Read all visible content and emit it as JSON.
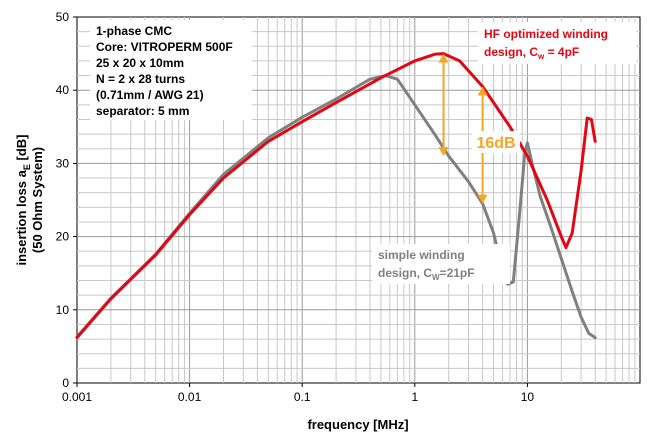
{
  "chart_data": {
    "type": "line",
    "x_scale": "log",
    "xlim": [
      0.001,
      100
    ],
    "ylim": [
      0,
      50
    ],
    "xlabel": "frequency [MHz]",
    "ylabel_line1_prefix": "insertion loss a",
    "ylabel_line1_sub": "E",
    "ylabel_line1_suffix": " [dB]",
    "ylabel_line2": "(50 Ohm System)",
    "x_ticks": [
      0.001,
      0.01,
      0.1,
      1,
      10
    ],
    "x_tick_labels": [
      "0.001",
      "0.01",
      "0.1",
      "1",
      "10"
    ],
    "y_ticks": [
      0,
      10,
      20,
      30,
      40,
      50
    ],
    "y_tick_labels": [
      "0",
      "10",
      "20",
      "30",
      "40",
      "50"
    ],
    "grid": true,
    "series": [
      {
        "name": "HF optimized winding design, Cw = 4pF",
        "color": "#e30613",
        "x": [
          0.001,
          0.002,
          0.005,
          0.01,
          0.02,
          0.05,
          0.1,
          0.2,
          0.5,
          1.0,
          1.5,
          1.8,
          2.5,
          4.0,
          7.0,
          10.0,
          15.0,
          20.0,
          22.0,
          25.0,
          30.0,
          34.0,
          37.0,
          40.0
        ],
        "y": [
          6.2,
          11.5,
          17.5,
          23.0,
          28.0,
          33.0,
          35.7,
          38.3,
          41.7,
          44.0,
          44.9,
          45.0,
          44.0,
          40.5,
          35.0,
          31.0,
          25.0,
          20.0,
          18.5,
          20.5,
          29.0,
          36.2,
          36.0,
          33.0
        ]
      },
      {
        "name": "simple winding design, CW=21pF",
        "color": "#808080",
        "x": [
          0.001,
          0.002,
          0.005,
          0.01,
          0.02,
          0.05,
          0.1,
          0.2,
          0.4,
          0.55,
          0.7,
          1.0,
          1.5,
          2.0,
          3.0,
          4.0,
          5.0,
          6.0,
          6.7,
          7.5,
          8.5,
          9.5,
          10.0,
          11.0,
          13.0,
          16.0,
          20.0,
          25.0,
          30.0,
          35.0,
          40.0
        ],
        "y": [
          6.3,
          11.6,
          17.6,
          23.2,
          28.5,
          33.5,
          36.3,
          38.8,
          41.5,
          42.0,
          41.5,
          38.0,
          34.0,
          31.0,
          27.5,
          24.5,
          20.5,
          15.5,
          13.5,
          13.8,
          23.0,
          31.5,
          32.8,
          30.0,
          25.5,
          21.5,
          17.0,
          12.5,
          9.0,
          6.8,
          6.2
        ]
      }
    ],
    "annotations": {
      "info_box": [
        "1-phase CMC",
        "Core: VITROPERM 500F",
        "25 x 20 x 10mm",
        "N = 2 x 28 turns",
        "(0.71mm / AWG 21)",
        "separator: 5 mm"
      ],
      "hf_label_line1": "HF optimized winding",
      "hf_label_line2_prefix": "design, C",
      "hf_label_line2_sub": "w",
      "hf_label_line2_suffix": " = 4pF",
      "simple_label_line1": "simple winding",
      "simple_label_line2_prefix": "design, C",
      "simple_label_line2_sub": "W",
      "simple_label_line2_suffix": "=21pF",
      "delta_label": "16dB",
      "arrows": [
        {
          "x": 1.8,
          "y_from": 45.0,
          "y_to": 31.0
        },
        {
          "x": 4.0,
          "y_from": 40.5,
          "y_to": 24.5
        }
      ],
      "arrow_color": "#f5a623"
    }
  }
}
